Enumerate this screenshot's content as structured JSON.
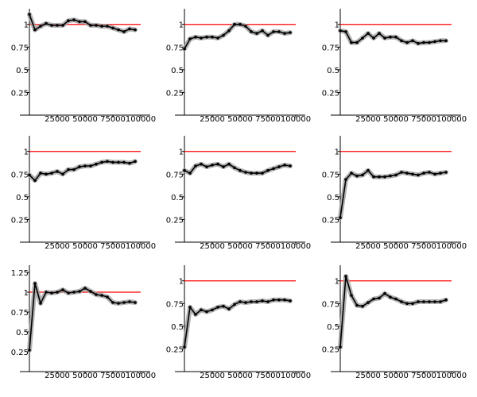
{
  "colors": {
    "reference_line": "#ff0000",
    "series_line": "#000000",
    "band_fill": "#9e9e9e",
    "axis": "#000000"
  },
  "chart_data": [
    {
      "type": "line",
      "grid": false,
      "xlim": [
        0,
        100000
      ],
      "ylim": [
        0,
        1.12
      ],
      "xticks": [
        25000,
        50000,
        75000,
        100000
      ],
      "xtick_labels": [
        "25000",
        "50000",
        "75000",
        "100000"
      ],
      "yticks": [
        0.25,
        0.5,
        0.75,
        1
      ],
      "ytick_labels": [
        "0.25",
        "0.5",
        "0.75",
        "1"
      ],
      "reference_y": 1,
      "x": [
        0,
        5000,
        10000,
        15000,
        20000,
        25000,
        30000,
        35000,
        40000,
        45000,
        50000,
        55000,
        60000,
        65000,
        70000,
        75000,
        80000,
        85000,
        90000,
        95000,
        100000
      ],
      "y": [
        1.11,
        0.94,
        0.98,
        1.01,
        0.99,
        0.99,
        0.99,
        1.04,
        1.05,
        1.03,
        1.03,
        0.99,
        0.99,
        0.98,
        0.98,
        0.96,
        0.94,
        0.92,
        0.95,
        0.94,
        null
      ]
    },
    {
      "type": "line",
      "grid": false,
      "xlim": [
        0,
        100000
      ],
      "ylim": [
        0,
        1.12
      ],
      "xticks": [
        25000,
        50000,
        75000,
        100000
      ],
      "xtick_labels": [
        "25000",
        "50000",
        "75000",
        "100000"
      ],
      "yticks": [
        0.25,
        0.5,
        0.75,
        1
      ],
      "ytick_labels": [
        "0.25",
        "0.5",
        "0.75",
        "1"
      ],
      "reference_y": 1,
      "x": [
        0,
        5000,
        10000,
        15000,
        20000,
        25000,
        30000,
        35000,
        40000,
        45000,
        50000,
        55000,
        60000,
        65000,
        70000,
        75000,
        80000,
        85000,
        90000,
        95000,
        100000
      ],
      "y": [
        0.73,
        0.84,
        0.86,
        0.85,
        0.86,
        0.86,
        0.85,
        0.88,
        0.93,
        1.0,
        1.0,
        0.98,
        0.92,
        0.9,
        0.93,
        0.88,
        0.92,
        0.92,
        0.9,
        0.91,
        null
      ]
    },
    {
      "type": "line",
      "grid": false,
      "xlim": [
        0,
        100000
      ],
      "ylim": [
        0,
        1.12
      ],
      "xticks": [
        25000,
        50000,
        75000,
        100000
      ],
      "xtick_labels": [
        "25000",
        "50000",
        "75000",
        "100000"
      ],
      "yticks": [
        0.25,
        0.5,
        0.75,
        1
      ],
      "ytick_labels": [
        "0.25",
        "0.5",
        "0.75",
        "1"
      ],
      "reference_y": 1,
      "x": [
        0,
        5000,
        10000,
        15000,
        20000,
        25000,
        30000,
        35000,
        40000,
        45000,
        50000,
        55000,
        60000,
        65000,
        70000,
        75000,
        80000,
        85000,
        90000,
        95000,
        100000
      ],
      "y": [
        0.93,
        0.92,
        0.8,
        0.8,
        0.85,
        0.9,
        0.85,
        0.9,
        0.85,
        0.86,
        0.86,
        0.82,
        0.8,
        0.82,
        0.79,
        0.8,
        0.8,
        0.81,
        0.82,
        0.82,
        null
      ]
    },
    {
      "type": "line",
      "grid": false,
      "xlim": [
        0,
        100000
      ],
      "ylim": [
        0,
        1.12
      ],
      "xticks": [
        25000,
        50000,
        75000,
        100000
      ],
      "xtick_labels": [
        "25000",
        "50000",
        "75000",
        "100000"
      ],
      "yticks": [
        0.25,
        0.5,
        0.75,
        1
      ],
      "ytick_labels": [
        "0.25",
        "0.5",
        "0.75",
        "1"
      ],
      "reference_y": 1,
      "x": [
        0,
        5000,
        10000,
        15000,
        20000,
        25000,
        30000,
        35000,
        40000,
        45000,
        50000,
        55000,
        60000,
        65000,
        70000,
        75000,
        80000,
        85000,
        90000,
        95000,
        100000
      ],
      "y": [
        0.74,
        0.68,
        0.76,
        0.75,
        0.76,
        0.78,
        0.75,
        0.8,
        0.8,
        0.83,
        0.84,
        0.84,
        0.86,
        0.88,
        0.89,
        0.88,
        0.88,
        0.88,
        0.87,
        0.89,
        null
      ]
    },
    {
      "type": "line",
      "grid": false,
      "xlim": [
        0,
        100000
      ],
      "ylim": [
        0,
        1.12
      ],
      "xticks": [
        25000,
        50000,
        75000,
        100000
      ],
      "xtick_labels": [
        "25000",
        "50000",
        "75000",
        "100000"
      ],
      "yticks": [
        0.25,
        0.5,
        0.75,
        1
      ],
      "ytick_labels": [
        "0.25",
        "0.5",
        "0.75",
        "1"
      ],
      "reference_y": 1,
      "x": [
        0,
        5000,
        10000,
        15000,
        20000,
        25000,
        30000,
        35000,
        40000,
        45000,
        50000,
        55000,
        60000,
        65000,
        70000,
        75000,
        80000,
        85000,
        90000,
        95000,
        100000
      ],
      "y": [
        0.79,
        0.76,
        0.84,
        0.86,
        0.83,
        0.85,
        0.86,
        0.83,
        0.86,
        0.82,
        0.79,
        0.77,
        0.76,
        0.76,
        0.76,
        0.79,
        0.81,
        0.83,
        0.85,
        0.84,
        null
      ]
    },
    {
      "type": "line",
      "grid": false,
      "xlim": [
        0,
        100000
      ],
      "ylim": [
        0,
        1.12
      ],
      "xticks": [
        25000,
        50000,
        75000,
        100000
      ],
      "xtick_labels": [
        "25000",
        "50000",
        "75000",
        "100000"
      ],
      "yticks": [
        0.25,
        0.5,
        0.75,
        1
      ],
      "ytick_labels": [
        "0.25",
        "0.5",
        "0.75",
        "1"
      ],
      "reference_y": 1,
      "x": [
        0,
        5000,
        10000,
        15000,
        20000,
        25000,
        30000,
        35000,
        40000,
        45000,
        50000,
        55000,
        60000,
        65000,
        70000,
        75000,
        80000,
        85000,
        90000,
        95000,
        100000
      ],
      "y": [
        0.27,
        0.69,
        0.76,
        0.73,
        0.74,
        0.79,
        0.72,
        0.72,
        0.72,
        0.73,
        0.74,
        0.77,
        0.76,
        0.75,
        0.74,
        0.76,
        0.77,
        0.75,
        0.76,
        0.77,
        null
      ]
    },
    {
      "type": "line",
      "grid": false,
      "xlim": [
        0,
        100000
      ],
      "ylim": [
        0,
        1.28
      ],
      "xticks": [
        25000,
        50000,
        75000,
        100000
      ],
      "xtick_labels": [
        "25000",
        "50000",
        "75000",
        "100000"
      ],
      "yticks": [
        0.25,
        0.5,
        0.75,
        1,
        1.25
      ],
      "ytick_labels": [
        "0.25",
        "0.5",
        "0.75",
        "1",
        "1.25"
      ],
      "reference_y": 1,
      "x": [
        0,
        5000,
        10000,
        15000,
        20000,
        25000,
        30000,
        35000,
        40000,
        45000,
        50000,
        55000,
        60000,
        65000,
        70000,
        75000,
        80000,
        85000,
        90000,
        95000,
        100000
      ],
      "y": [
        0.27,
        1.11,
        0.86,
        1.0,
        0.99,
        1.0,
        1.03,
        0.99,
        1.0,
        1.01,
        1.05,
        1.01,
        0.97,
        0.96,
        0.94,
        0.87,
        0.86,
        0.87,
        0.88,
        0.87,
        null
      ]
    },
    {
      "type": "line",
      "grid": false,
      "xlim": [
        0,
        100000
      ],
      "ylim": [
        0,
        1.12
      ],
      "xticks": [
        25000,
        50000,
        75000,
        100000
      ],
      "xtick_labels": [
        "25000",
        "50000",
        "75000",
        "100000"
      ],
      "yticks": [
        0.25,
        0.5,
        0.75,
        1
      ],
      "ytick_labels": [
        "0.25",
        "0.5",
        "0.75",
        "1"
      ],
      "reference_y": 1,
      "x": [
        0,
        5000,
        10000,
        15000,
        20000,
        25000,
        30000,
        35000,
        40000,
        45000,
        50000,
        55000,
        60000,
        65000,
        70000,
        75000,
        80000,
        85000,
        90000,
        95000,
        100000
      ],
      "y": [
        0.27,
        0.71,
        0.63,
        0.68,
        0.66,
        0.68,
        0.71,
        0.72,
        0.69,
        0.74,
        0.77,
        0.76,
        0.77,
        0.77,
        0.78,
        0.77,
        0.79,
        0.79,
        0.79,
        0.78,
        null
      ]
    },
    {
      "type": "line",
      "grid": false,
      "xlim": [
        0,
        100000
      ],
      "ylim": [
        0,
        1.12
      ],
      "xticks": [
        25000,
        50000,
        75000,
        100000
      ],
      "xtick_labels": [
        "25000",
        "50000",
        "75000",
        "100000"
      ],
      "yticks": [
        0.25,
        0.5,
        0.75,
        1
      ],
      "ytick_labels": [
        "0.25",
        "0.5",
        "0.75",
        "1"
      ],
      "reference_y": 1,
      "x": [
        0,
        5000,
        10000,
        15000,
        20000,
        25000,
        30000,
        35000,
        40000,
        45000,
        50000,
        55000,
        60000,
        65000,
        70000,
        75000,
        80000,
        85000,
        90000,
        95000,
        100000
      ],
      "y": [
        0.27,
        1.05,
        0.84,
        0.73,
        0.72,
        0.76,
        0.8,
        0.81,
        0.86,
        0.82,
        0.8,
        0.77,
        0.75,
        0.75,
        0.77,
        0.77,
        0.77,
        0.77,
        0.77,
        0.79,
        null
      ]
    }
  ]
}
